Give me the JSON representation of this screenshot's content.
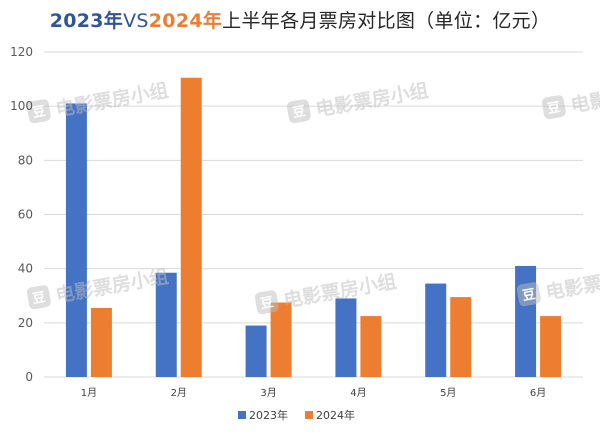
{
  "colors": {
    "series_2023": "#4472C4",
    "series_2024": "#ED7D31",
    "title_2023": "#2F5597",
    "title_2024": "#ED7D31",
    "grid": "#d9d9d9",
    "watermark": "#bdbdbd"
  },
  "title_parts": {
    "part1": "2023年",
    "part2": "VS",
    "part3": "2024年",
    "part4": "上半年各月票房对比图（单位：亿元）"
  },
  "watermark": {
    "badge_char": "豆",
    "text": "电影票房小组"
  },
  "chart_data": {
    "type": "bar",
    "title": "2023年VS2024年上半年各月票房对比图（单位：亿元）",
    "categories": [
      "1月",
      "2月",
      "3月",
      "4月",
      "5月",
      "6月"
    ],
    "series": [
      {
        "name": "2023年",
        "values": [
          101,
          38.5,
          19,
          29,
          34.5,
          41
        ]
      },
      {
        "name": "2024年",
        "values": [
          25.5,
          110.5,
          27.5,
          22.5,
          29.5,
          22.5
        ]
      }
    ],
    "ylim": [
      0,
      120
    ],
    "yticks": [
      0,
      20,
      40,
      60,
      80,
      100,
      120
    ],
    "grid": true,
    "legend_position": "bottom-center"
  }
}
